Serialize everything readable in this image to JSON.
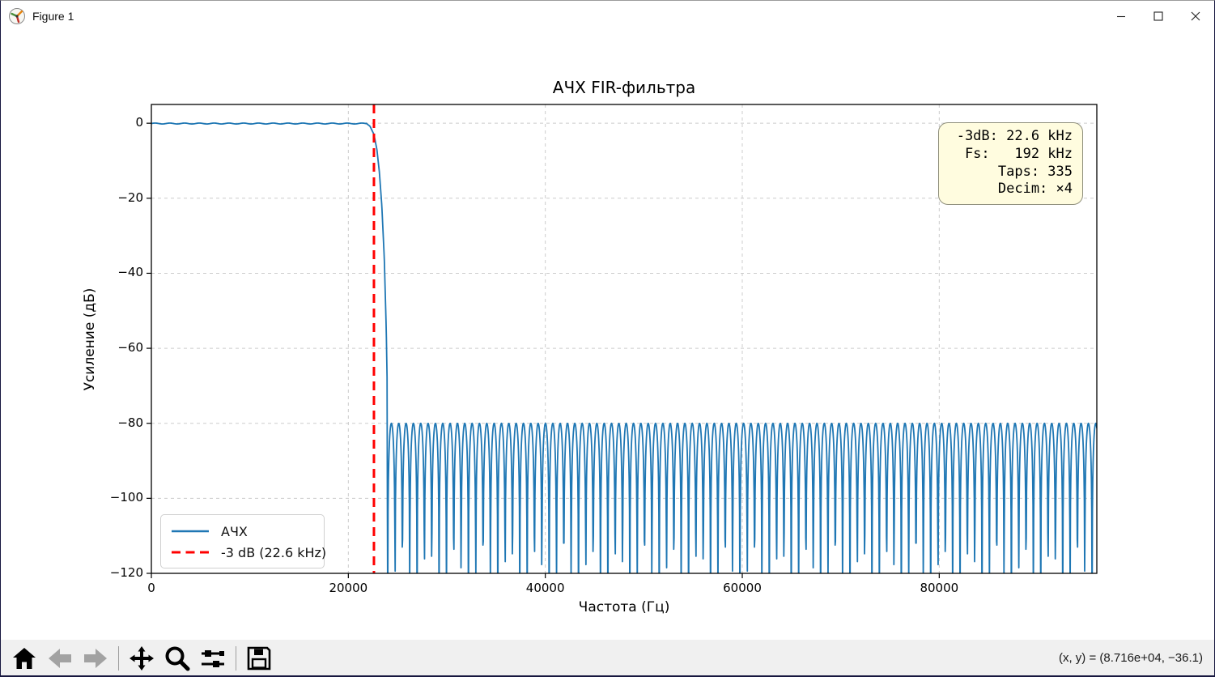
{
  "window": {
    "title": "Figure 1",
    "controls": {
      "minimize": "minimize",
      "maximize": "maximize",
      "close": "close"
    }
  },
  "chart_data": {
    "type": "line",
    "title": "АЧХ FIR-фильтра",
    "xlabel": "Частота (Гц)",
    "ylabel": "Усиление (дБ)",
    "xlim": [
      0,
      96000
    ],
    "ylim": [
      -120,
      5
    ],
    "x_ticks": [
      {
        "value": 0,
        "label": "0"
      },
      {
        "value": 20000,
        "label": "20000"
      },
      {
        "value": 40000,
        "label": "40000"
      },
      {
        "value": 60000,
        "label": "60000"
      },
      {
        "value": 80000,
        "label": "80000"
      }
    ],
    "y_ticks": [
      {
        "value": 0,
        "label": "0"
      },
      {
        "value": -20,
        "label": "−20"
      },
      {
        "value": -40,
        "label": "−40"
      },
      {
        "value": -60,
        "label": "−60"
      },
      {
        "value": -80,
        "label": "−80"
      },
      {
        "value": -100,
        "label": "−100"
      },
      {
        "value": -120,
        "label": "−120"
      }
    ],
    "grid": {
      "on": true,
      "style": "dashed",
      "color": "#c6c6c6"
    },
    "series": [
      {
        "name": "АЧХ",
        "color": "#1f77b4",
        "style": "solid",
        "description": "FIR lowpass magnitude response: flat 0 dB passband to ~21.8 kHz, −3 dB at 22.6 kHz, steep transition reaching −80 dB near 24 kHz, then equiripple stopband with peaks at −80 dB and deep notches (clipped below −120 dB) up to 96 kHz",
        "generator": {
          "passband_ripple_db": 0.12,
          "passband_ripple_period_hz": 1500,
          "transition_anchors": [
            [
              21800,
              0
            ],
            [
              22200,
              -0.8
            ],
            [
              22600,
              -3
            ],
            [
              22900,
              -7
            ],
            [
              23150,
              -13
            ],
            [
              23400,
              -22
            ],
            [
              23650,
              -36
            ],
            [
              23850,
              -55
            ],
            [
              23959,
              -72
            ]
          ],
          "stopband_start_hz": 23959,
          "stopband_peak_db": -80,
          "ripple_period_hz": 745,
          "notch_ref_hz": 24000,
          "notch_slope_db_per_decade": 28,
          "clip_db": -131,
          "samples": 2800
        }
      },
      {
        "name": "-3 dB (22.6 kHz)",
        "color": "#ff0000",
        "style": "dashed",
        "x": 22600
      }
    ],
    "legend": {
      "position": "lower left",
      "items": [
        {
          "label": "АЧХ"
        },
        {
          "label": "-3 dB (22.6 kHz)"
        }
      ]
    },
    "annotation_box": {
      "bg": "#fffcdf",
      "text": "-3dB: 22.6 kHz\n Fs:   192 kHz\nTaps: 335\nDecim: ×4"
    }
  },
  "toolbar": {
    "buttons": [
      "home",
      "back",
      "forward",
      "pan",
      "zoom",
      "configure-subplots",
      "save"
    ],
    "status": "(x, y) = (8.716e+04, −36.1)"
  }
}
